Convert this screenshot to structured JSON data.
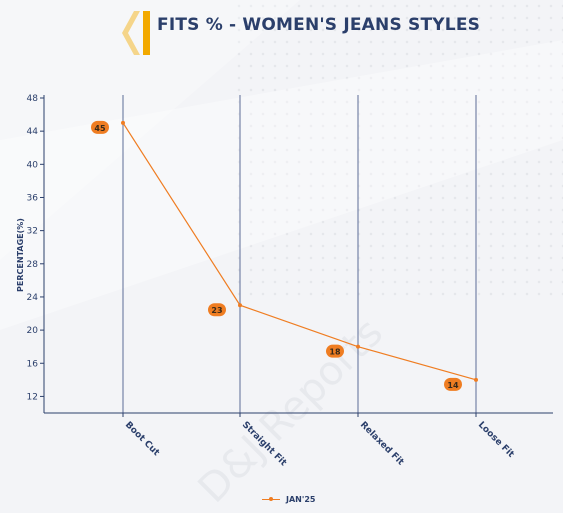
{
  "title": "FITS % - WOMEN'S JEANS STYLES",
  "colors": {
    "accent": "#ef7d22",
    "axis": "#2b3f6b",
    "brand_yellow": "#f2a900",
    "brand_light": "#f5d58a"
  },
  "watermark": "D&J Reports",
  "chart_data": {
    "type": "line",
    "ylabel": "PERCENTAGE(%)",
    "xlabel": "",
    "ylim": [
      10,
      48
    ],
    "yticks": [
      12,
      16,
      20,
      24,
      28,
      32,
      36,
      40,
      44,
      48
    ],
    "grid": "vertical lines at categories",
    "categories": [
      "Boot Cut",
      "Straight Fit",
      "Relaxed Fit",
      "Loose Fit"
    ],
    "series": [
      {
        "name": "JAN'25",
        "values": [
          45,
          23,
          18,
          14
        ]
      }
    ],
    "legend": "bottom-center"
  }
}
